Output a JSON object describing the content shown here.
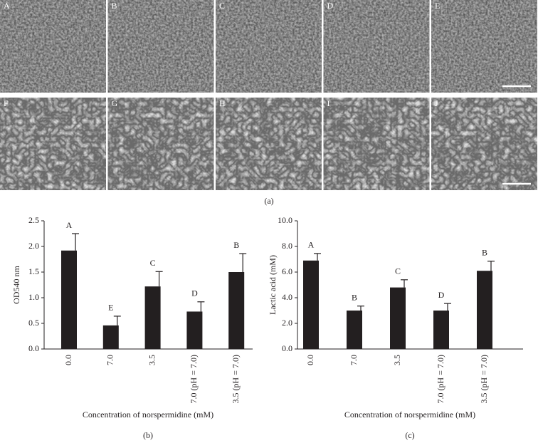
{
  "panel_a": {
    "images": [
      "A",
      "B",
      "C",
      "D",
      "E",
      "F",
      "G",
      "H",
      "I",
      "J"
    ],
    "caption": "(a)"
  },
  "chart_data": [
    {
      "type": "bar",
      "caption": "(b)",
      "y_label": "OD540 nm",
      "x_label": "Concentration of norspermidine (mM)",
      "categories": [
        "0.0",
        "7.0",
        "3.5",
        "7.0 (pH = 7.0)",
        "3.5 (pH = 7.0)"
      ],
      "values": [
        1.92,
        0.46,
        1.22,
        0.73,
        1.5
      ],
      "errors": [
        0.33,
        0.18,
        0.29,
        0.19,
        0.36
      ],
      "group_labels": [
        "A",
        "E",
        "C",
        "D",
        "B"
      ],
      "color": "#231f20",
      "ylim": [
        0,
        2.5
      ],
      "yticks": [
        {
          "value": 0,
          "label": "0.0"
        },
        0.5,
        {
          "value": 1,
          "label": "1.0"
        },
        1.5,
        {
          "value": 2,
          "label": "2.0"
        },
        2.5
      ]
    },
    {
      "type": "bar",
      "caption": "(c)",
      "y_label": "Lactic acid (mM)",
      "x_label": "Concentration of norspermidine (mM)",
      "categories": [
        "0.0",
        "7.0",
        "3.5",
        "7.0 (pH = 7.0)",
        "3.5 (pH = 7.0)"
      ],
      "values": [
        6.9,
        3.0,
        4.8,
        3.0,
        6.1
      ],
      "errors": [
        0.55,
        0.35,
        0.6,
        0.55,
        0.75
      ],
      "group_labels": [
        "A",
        "B",
        "C",
        "D",
        "B"
      ],
      "color": "#231f20",
      "ylim": [
        0,
        10
      ],
      "yticks": [
        {
          "value": 0,
          "label": "0.0"
        },
        {
          "value": 2,
          "label": "2.0"
        },
        {
          "value": 4,
          "label": "4.0"
        },
        {
          "value": 6,
          "label": "6.0"
        },
        {
          "value": 8,
          "label": "8.0"
        },
        {
          "value": 10,
          "label": "10.0"
        }
      ]
    }
  ]
}
